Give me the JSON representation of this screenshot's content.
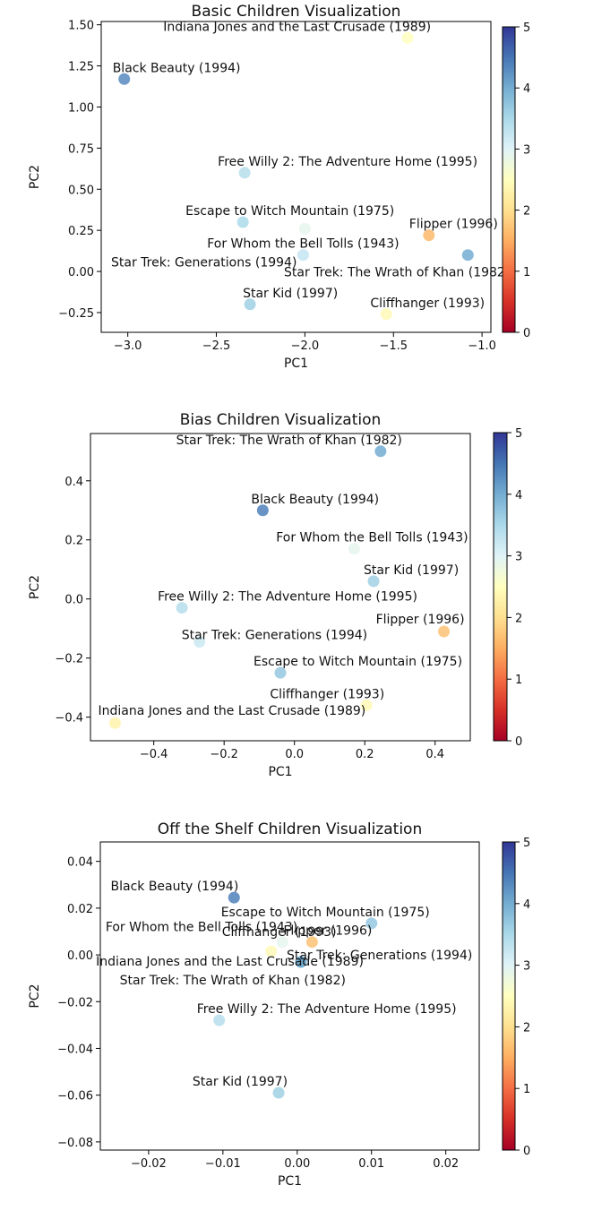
{
  "chart_data": [
    {
      "type": "scatter",
      "title": "Basic Children Visualization",
      "xlabel": "PC1",
      "ylabel": "PC2",
      "xlim": [
        -3.15,
        -0.95
      ],
      "ylim": [
        -0.37,
        1.52
      ],
      "xticks": [
        {
          "v": -3.0,
          "label": "−3.0"
        },
        {
          "v": -2.5,
          "label": "−2.5"
        },
        {
          "v": -2.0,
          "label": "−2.0"
        },
        {
          "v": -1.5,
          "label": "−1.5"
        },
        {
          "v": -1.0,
          "label": "−1.0"
        }
      ],
      "yticks": [
        {
          "v": 1.5,
          "label": "1.50"
        },
        {
          "v": 1.25,
          "label": "1.25"
        },
        {
          "v": 1.0,
          "label": "1.00"
        },
        {
          "v": 0.75,
          "label": "0.75"
        },
        {
          "v": 0.5,
          "label": "0.50"
        },
        {
          "v": 0.25,
          "label": "0.25"
        },
        {
          "v": 0.0,
          "label": "0.00"
        },
        {
          "v": -0.25,
          "label": "−0.25"
        }
      ],
      "colorbar": {
        "range": [
          0,
          5
        ],
        "ticks": [
          "0",
          "1",
          "2",
          "3",
          "4",
          "5"
        ]
      },
      "points": [
        {
          "label": "Indiana Jones and the Last Crusade (1989)",
          "x": -1.42,
          "y": 1.42,
          "c": 2.5,
          "anchor": "end",
          "dx": 26,
          "dy": -8
        },
        {
          "label": "Black Beauty (1994)",
          "x": -3.02,
          "y": 1.17,
          "c": 4.3,
          "anchor": "start",
          "dx": -13,
          "dy": -8
        },
        {
          "label": "Free Willy 2: The Adventure Home (1995)",
          "x": -2.34,
          "y": 0.6,
          "c": 3.4,
          "anchor": "start",
          "dx": -30,
          "dy": -8
        },
        {
          "label": "Escape to Witch Mountain (1975)",
          "x": -2.35,
          "y": 0.3,
          "c": 3.5,
          "anchor": "start",
          "dx": -64,
          "dy": -8
        },
        {
          "label": "",
          "x": -2.0,
          "y": 0.26,
          "c": 2.9
        },
        {
          "label": "Flipper (1996)",
          "x": -1.3,
          "y": 0.22,
          "c": 1.6,
          "anchor": "end",
          "dx": 77,
          "dy": -8
        },
        {
          "label": "For Whom the Bell Tolls (1943)",
          "x": -2.01,
          "y": 0.1,
          "c": 3.2,
          "anchor": "middle",
          "dx": 0,
          "dy": -8
        },
        {
          "label": "Star Trek: Generations (1994)",
          "x": -2.01,
          "y": 0.1,
          "c": 3.2,
          "anchor": "end",
          "dx": -7,
          "dy": 13
        },
        {
          "label": "Star Trek: The Wrath of Khan (1982)",
          "x": -1.08,
          "y": 0.1,
          "c": 4.0,
          "anchor": "end",
          "dx": 47,
          "dy": 24
        },
        {
          "label": "Star Kid (1997)",
          "x": -2.31,
          "y": -0.2,
          "c": 3.6,
          "anchor": "start",
          "dx": -8,
          "dy": -8
        },
        {
          "label": "Cliffhanger (1993)",
          "x": -1.54,
          "y": -0.26,
          "c": 2.4,
          "anchor": "start",
          "dx": -18,
          "dy": -8
        }
      ]
    },
    {
      "type": "scatter",
      "title": "Bias Children Visualization",
      "xlabel": "PC1",
      "ylabel": "PC2",
      "xlim": [
        -0.58,
        0.5
      ],
      "ylim": [
        -0.48,
        0.56
      ],
      "xticks": [
        {
          "v": -0.4,
          "label": "−0.4"
        },
        {
          "v": -0.2,
          "label": "−0.2"
        },
        {
          "v": 0.0,
          "label": "0.0"
        },
        {
          "v": 0.2,
          "label": "0.2"
        },
        {
          "v": 0.4,
          "label": "0.4"
        }
      ],
      "yticks": [
        {
          "v": 0.4,
          "label": "0.4"
        },
        {
          "v": 0.2,
          "label": "0.2"
        },
        {
          "v": 0.0,
          "label": "0.0"
        },
        {
          "v": -0.2,
          "label": "−0.2"
        },
        {
          "v": -0.4,
          "label": "−0.4"
        }
      ],
      "colorbar": {
        "range": [
          0,
          5
        ],
        "ticks": [
          "0",
          "1",
          "2",
          "3",
          "4",
          "5"
        ]
      },
      "points": [
        {
          "label": "Star Trek: The Wrath of Khan (1982)",
          "x": 0.245,
          "y": 0.5,
          "c": 4.0,
          "anchor": "end",
          "dx": 24,
          "dy": -8
        },
        {
          "label": "Black Beauty (1994)",
          "x": -0.09,
          "y": 0.3,
          "c": 4.4,
          "anchor": "start",
          "dx": -13,
          "dy": -8
        },
        {
          "label": "For Whom the Bell Tolls (1943)",
          "x": 0.17,
          "y": 0.17,
          "c": 2.9,
          "anchor": "middle",
          "dx": 20,
          "dy": -8
        },
        {
          "label": "Star Kid (1997)",
          "x": 0.225,
          "y": 0.06,
          "c": 3.6,
          "anchor": "start",
          "dx": -11,
          "dy": -8
        },
        {
          "label": "Free Willy 2: The Adventure Home (1995)",
          "x": -0.32,
          "y": -0.03,
          "c": 3.4,
          "anchor": "start",
          "dx": -27,
          "dy": -8
        },
        {
          "label": "Flipper (1996)",
          "x": 0.425,
          "y": -0.11,
          "c": 1.7,
          "anchor": "end",
          "dx": 23,
          "dy": -9
        },
        {
          "label": "Star Trek: Generations (1994)",
          "x": -0.27,
          "y": -0.145,
          "c": 3.2,
          "anchor": "start",
          "dx": -20,
          "dy": -3
        },
        {
          "label": "Escape to Witch Mountain (1975)",
          "x": -0.04,
          "y": -0.25,
          "c": 3.7,
          "anchor": "start",
          "dx": -30,
          "dy": -8
        },
        {
          "label": "Cliffhanger (1993)",
          "x": 0.205,
          "y": -0.36,
          "c": 2.4,
          "anchor": "end",
          "dx": 20,
          "dy": -8
        },
        {
          "label": "Indiana Jones and the Last Crusade (1989)",
          "x": -0.51,
          "y": -0.42,
          "c": 2.3,
          "anchor": "start",
          "dx": -19,
          "dy": -9
        }
      ]
    },
    {
      "type": "scatter",
      "title": "Off the Shelf Children Visualization",
      "xlabel": "PC1",
      "ylabel": "PC2",
      "xlim": [
        -0.0265,
        0.0245
      ],
      "ylim": [
        -0.0835,
        0.0483
      ],
      "xticks": [
        {
          "v": -0.02,
          "label": "−0.02"
        },
        {
          "v": -0.01,
          "label": "−0.01"
        },
        {
          "v": 0.0,
          "label": "0.00"
        },
        {
          "v": 0.01,
          "label": "0.01"
        },
        {
          "v": 0.02,
          "label": "0.02"
        }
      ],
      "yticks": [
        {
          "v": 0.04,
          "label": "0.04"
        },
        {
          "v": 0.02,
          "label": "0.02"
        },
        {
          "v": 0.0,
          "label": "0.00"
        },
        {
          "v": -0.02,
          "label": "−0.02"
        },
        {
          "v": -0.04,
          "label": "−0.04"
        },
        {
          "v": -0.06,
          "label": "−0.06"
        },
        {
          "v": -0.08,
          "label": "−0.08"
        }
      ],
      "colorbar": {
        "range": [
          0,
          5
        ],
        "ticks": [
          "0",
          "1",
          "2",
          "3",
          "4",
          "5"
        ]
      },
      "points": [
        {
          "label": "Black Beauty (1994)",
          "x": -0.0085,
          "y": 0.0245,
          "c": 4.4,
          "anchor": "end",
          "dx": 5,
          "dy": -8
        },
        {
          "label": "Escape to Witch Mountain (1975)",
          "x": 0.01,
          "y": 0.0135,
          "c": 3.7,
          "anchor": "end",
          "dx": 65,
          "dy": -8
        },
        {
          "label": "Flipper (1996)",
          "x": 0.002,
          "y": 0.0055,
          "c": 1.7,
          "anchor": "start",
          "dx": -32,
          "dy": -8
        },
        {
          "label": "For Whom the Bell Tolls (1943)",
          "x": -0.002,
          "y": 0.0055,
          "c": 2.9,
          "anchor": "end",
          "dx": 17,
          "dy": -12
        },
        {
          "label": "Cliffhanger (1993)",
          "x": -0.0035,
          "y": 0.0015,
          "c": 2.4,
          "anchor": "start",
          "dx": -55,
          "dy": -17
        },
        {
          "label": "Star Trek: Generations (1994)",
          "x": 0.0005,
          "y": -0.003,
          "c": 3.2,
          "anchor": "start",
          "dx": -16,
          "dy": -3
        },
        {
          "label": "Indiana Jones and the Last Crusade (1989)",
          "x": 0.0005,
          "y": -0.003,
          "c": 4.1,
          "anchor": "end",
          "dx": 70,
          "dy": 4
        },
        {
          "label": "Star Trek: The Wrath of Khan (1982)",
          "x": 0.0005,
          "y": -0.003,
          "c": 4.0,
          "anchor": "end",
          "dx": 50,
          "dy": 25
        },
        {
          "label": "Free Willy 2: The Adventure Home (1995)",
          "x": -0.0105,
          "y": -0.028,
          "c": 3.4,
          "anchor": "start",
          "dx": -25,
          "dy": -8
        },
        {
          "label": "Star Kid (1997)",
          "x": -0.0025,
          "y": -0.059,
          "c": 3.6,
          "anchor": "end",
          "dx": 10,
          "dy": -8
        }
      ]
    }
  ]
}
